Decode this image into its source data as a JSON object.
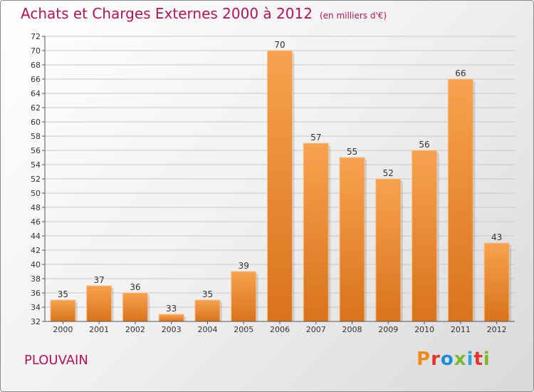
{
  "chart_data": {
    "type": "bar",
    "title": "Achats et Charges Externes 2000 à 2012",
    "subtitle": "(en milliers d'€)",
    "categories": [
      "2000",
      "2001",
      "2002",
      "2003",
      "2004",
      "2005",
      "2006",
      "2007",
      "2008",
      "2009",
      "2010",
      "2011",
      "2012"
    ],
    "values": [
      35,
      37,
      36,
      33,
      35,
      39,
      70,
      57,
      55,
      52,
      56,
      66,
      43
    ],
    "ylim": [
      32,
      72
    ],
    "ytick_step": 2,
    "grid": true,
    "xlabel": "",
    "ylabel": ""
  },
  "footer": {
    "commune": "PLOUVAIN",
    "brand": "Proxiti",
    "brand_colors": [
      "#f08a1a",
      "#e6332a",
      "#1a8fd6",
      "#7cb82f",
      "#2aa7d9",
      "#e6332a",
      "#7cb82f"
    ]
  },
  "colors": {
    "title": "#b0145a",
    "bar_light": "#f7a24f",
    "bar_dark": "#e07b22",
    "grid": "#c8c8c8"
  }
}
